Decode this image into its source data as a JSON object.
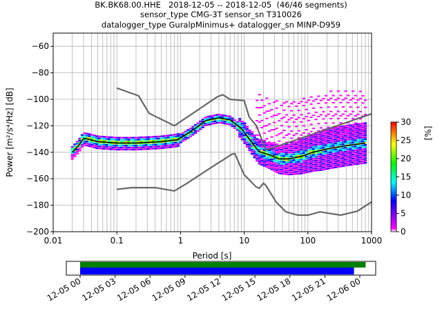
{
  "titles": [
    "BK.BK68.00.HHE   2018-12-05 -- 2018-12-05  (46/46 segments)",
    "sensor_type CMG-3T sensor_sn T310026",
    "datalogger_type GuralpMinimus+ datalogger_sn MINP-D959"
  ],
  "chart_data": [
    {
      "type": "heatmap",
      "xlabel": "Period [s]",
      "ylabel": "Power [m²/s⁴/Hz] [dB]",
      "xscale": "log",
      "xlim": [
        0.01,
        1000
      ],
      "ylim": [
        -200,
        -50
      ],
      "xticks": [
        0.01,
        0.1,
        1,
        10,
        100,
        1000
      ],
      "xtick_labels": [
        "0.01",
        "0.1",
        "1",
        "10",
        "100",
        "1000"
      ],
      "yticks": [
        -200,
        -180,
        -160,
        -140,
        -120,
        -100,
        -80,
        -60
      ],
      "ytick_labels": [
        "−200",
        "−180",
        "−160",
        "−140",
        "−120",
        "−100",
        "−80",
        "−60"
      ],
      "grid": true,
      "colorbar": {
        "label": "[%]",
        "range": [
          0,
          30
        ],
        "ticks": [
          "0",
          "5",
          "10",
          "15",
          "20",
          "25",
          "30"
        ]
      },
      "noise_model_high": [
        [
          0.1,
          -91.5
        ],
        [
          0.22,
          -97.4
        ],
        [
          0.32,
          -110.5
        ],
        [
          0.8,
          -120
        ],
        [
          3.8,
          -98
        ],
        [
          4.6,
          -96.5
        ],
        [
          6.0,
          -100
        ],
        [
          10,
          -101
        ],
        [
          12,
          -113.5
        ],
        [
          15.6,
          -120
        ],
        [
          21.9,
          -138.5
        ],
        [
          1000,
          -111
        ]
      ],
      "noise_model_low": [
        [
          0.1,
          -168
        ],
        [
          0.17,
          -166.7
        ],
        [
          0.4,
          -166.7
        ],
        [
          0.8,
          -169.2
        ],
        [
          1.24,
          -163.7
        ],
        [
          3.8,
          -148.4
        ],
        [
          4.6,
          -146
        ],
        [
          6.3,
          -141.6
        ],
        [
          7.1,
          -141
        ],
        [
          10,
          -157
        ],
        [
          15.4,
          -166.2
        ],
        [
          17.3,
          -167.2
        ],
        [
          20,
          -163.4
        ],
        [
          21.9,
          -165
        ],
        [
          31.6,
          -177.5
        ],
        [
          45,
          -185
        ],
        [
          70,
          -187.5
        ],
        [
          101,
          -187.5
        ],
        [
          154,
          -185
        ],
        [
          328,
          -187.5
        ],
        [
          600,
          -184.5
        ],
        [
          1000,
          -177.5
        ]
      ],
      "mode_curve": [
        [
          0.02,
          -140
        ],
        [
          0.025,
          -135
        ],
        [
          0.03,
          -129.5
        ],
        [
          0.035,
          -130
        ],
        [
          0.05,
          -132
        ],
        [
          0.1,
          -133
        ],
        [
          0.2,
          -133
        ],
        [
          0.5,
          -132
        ],
        [
          0.9,
          -130.5
        ],
        [
          1.5,
          -124
        ],
        [
          2.5,
          -116
        ],
        [
          4,
          -114
        ],
        [
          6,
          -115.5
        ],
        [
          9,
          -122
        ],
        [
          12,
          -130
        ],
        [
          17,
          -139.5
        ],
        [
          25,
          -142
        ],
        [
          35,
          -145
        ],
        [
          50,
          -145
        ],
        [
          80,
          -143
        ],
        [
          120,
          -140
        ],
        [
          200,
          -137.5
        ],
        [
          400,
          -135
        ],
        [
          800,
          -133
        ]
      ]
    },
    {
      "type": "bar",
      "description_axis": "time",
      "xlim": [
        "2018-12-05 00:00",
        "2018-12-06 01:00"
      ],
      "xtick_labels": [
        "12-05 00",
        "12-05 03",
        "12-05 06",
        "12-05 09",
        "12-05 12",
        "12-05 15",
        "12-05 18",
        "12-05 21",
        "12-06 00"
      ],
      "bars": [
        {
          "color": "#008000",
          "start": "2018-12-05 00:00",
          "end": "2018-12-06 00:30"
        },
        {
          "color": "#0000ff",
          "start": "2018-12-05 00:00",
          "end": "2018-12-05 23:30"
        }
      ]
    }
  ]
}
